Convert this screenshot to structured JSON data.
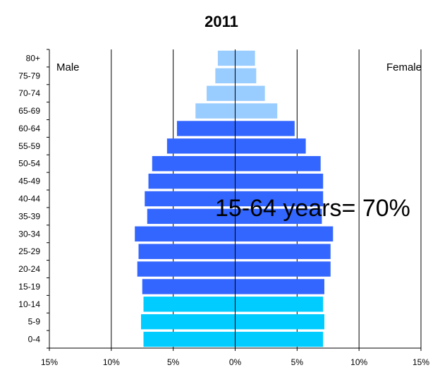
{
  "chart_data": {
    "type": "bar",
    "orientation": "horizontal",
    "title": "2011",
    "categories": [
      "0-4",
      "5-9",
      "10-14",
      "15-19",
      "20-24",
      "25-29",
      "30-34",
      "35-39",
      "40-44",
      "45-49",
      "50-54",
      "55-59",
      "60-64",
      "65-69",
      "70-74",
      "75-79",
      "80+"
    ],
    "series": [
      {
        "name": "Male",
        "values": [
          7.4,
          7.6,
          7.4,
          7.5,
          7.9,
          7.8,
          8.1,
          7.1,
          7.3,
          7.0,
          6.7,
          5.5,
          4.7,
          3.2,
          2.3,
          1.6,
          1.4
        ]
      },
      {
        "name": "Female",
        "values": [
          7.1,
          7.2,
          7.1,
          7.2,
          7.7,
          7.7,
          7.9,
          7.0,
          7.1,
          7.1,
          6.9,
          5.7,
          4.8,
          3.4,
          2.4,
          1.7,
          1.6
        ]
      }
    ],
    "age_group_colors": {
      "young": "#00CCFF",
      "working": "#3366FF",
      "elderly": "#99CCFF"
    },
    "xlim": [
      -15,
      15
    ],
    "xticks": [
      "15%",
      "10%",
      "5%",
      "0%",
      "5%",
      "10%",
      "15%"
    ],
    "grid": "vertical",
    "legend": "none",
    "side_labels": {
      "left": "Male",
      "right": "Female"
    },
    "annotation": "15-64 years= 70%"
  }
}
